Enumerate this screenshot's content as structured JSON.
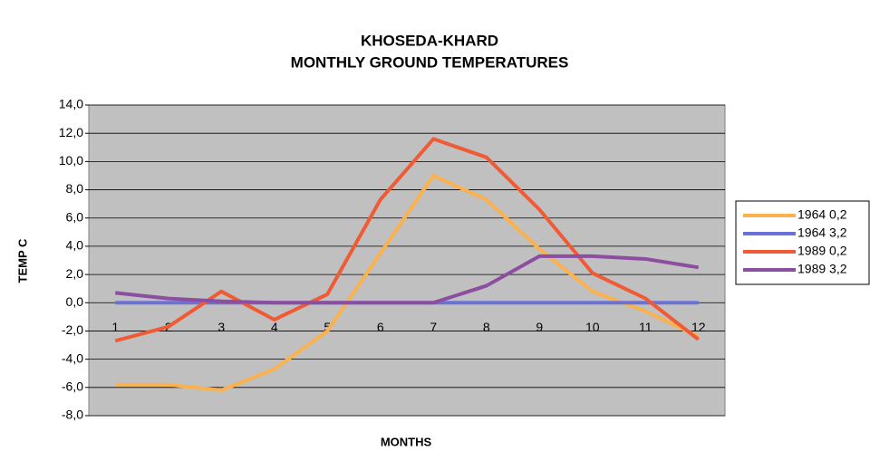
{
  "chart_data": {
    "type": "line",
    "title": "KHOSEDA-KHARD",
    "subtitle": "MONTHLY GROUND TEMPERATURES",
    "x_label": "MONTHS",
    "y_label": "TEMP C",
    "categories": [
      "1",
      "2",
      "3",
      "4",
      "5",
      "6",
      "7",
      "8",
      "9",
      "10",
      "11",
      "12"
    ],
    "series": [
      {
        "name": "1964 0,2",
        "color": "#fbb24e",
        "values": [
          -5.8,
          -5.8,
          -6.2,
          -4.7,
          -2.0,
          3.5,
          9.0,
          7.3,
          3.8,
          0.8,
          -0.6,
          -2.4
        ]
      },
      {
        "name": "1964 3,2",
        "color": "#6b72d6",
        "values": [
          0,
          0,
          0,
          0,
          0,
          0,
          0,
          0,
          0,
          0,
          0,
          0
        ]
      },
      {
        "name": "1989 0,2",
        "color": "#f05a34",
        "values": [
          -2.7,
          -1.7,
          0.8,
          -1.2,
          0.6,
          7.3,
          11.6,
          10.3,
          6.6,
          2.1,
          0.3,
          -2.6
        ]
      },
      {
        "name": "1989 3,2",
        "color": "#8c4ea0",
        "values": [
          0.7,
          0.3,
          0.1,
          0,
          0,
          0,
          0,
          1.2,
          3.3,
          3.3,
          3.1,
          2.5
        ]
      }
    ],
    "ylim": [
      -8,
      14
    ],
    "yticks": [
      {
        "value": -8,
        "label": "-8,0"
      },
      {
        "value": -6,
        "label": "-6,0"
      },
      {
        "value": -4,
        "label": "-4,0"
      },
      {
        "value": -2,
        "label": "-2,0"
      },
      {
        "value": 0,
        "label": "0,0"
      },
      {
        "value": 2,
        "label": "2,0"
      },
      {
        "value": 4,
        "label": "4,0"
      },
      {
        "value": 6,
        "label": "6,0"
      },
      {
        "value": 8,
        "label": "8,0"
      },
      {
        "value": 10,
        "label": "10,0"
      },
      {
        "value": 12,
        "label": "12,0"
      },
      {
        "value": 14,
        "label": "14,0"
      }
    ],
    "grid": true,
    "legend": "right",
    "background": "#c0c0c0"
  }
}
